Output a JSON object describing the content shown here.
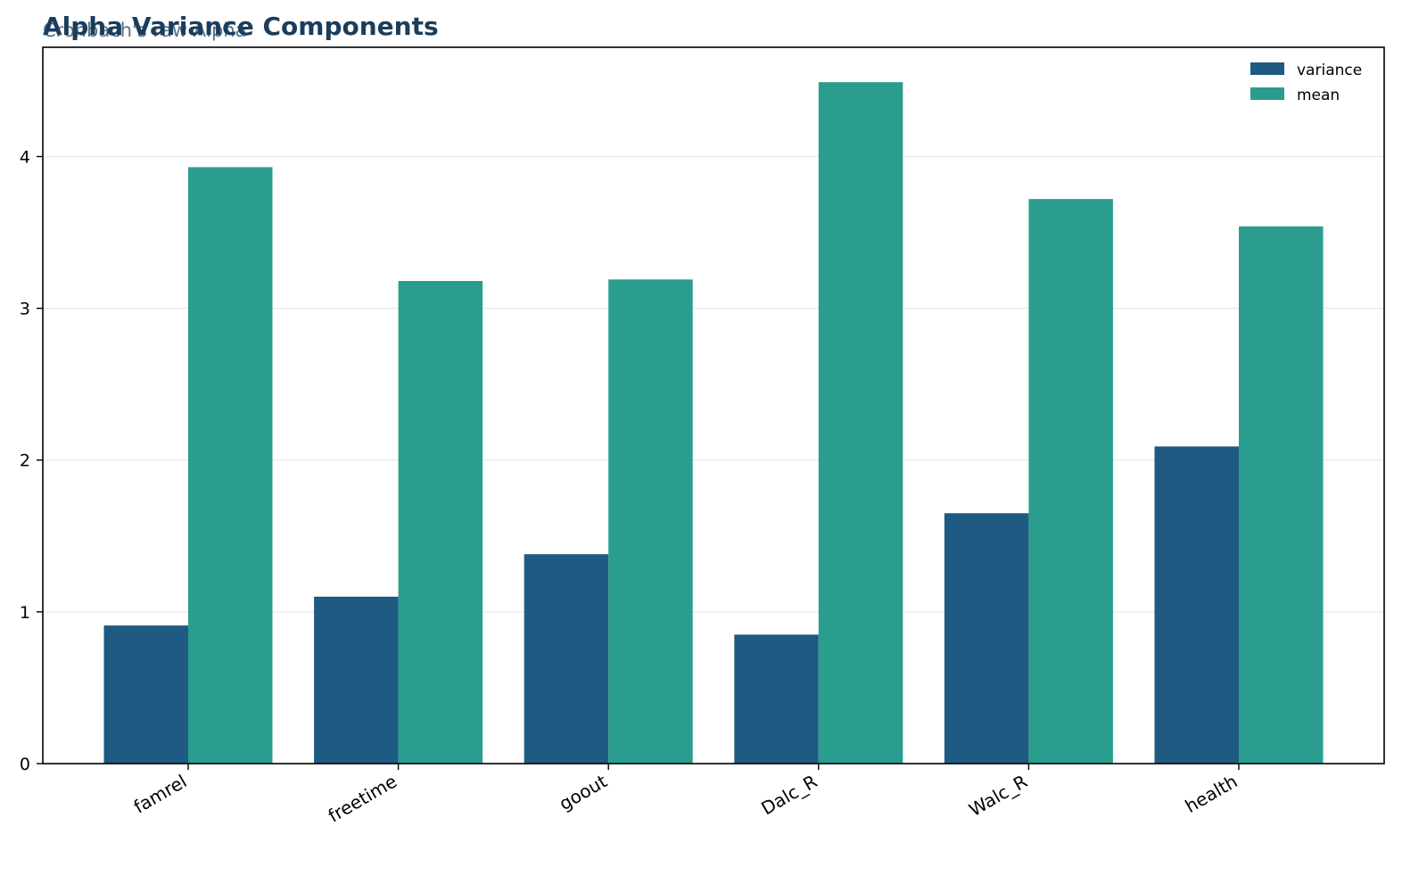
{
  "chart_data": {
    "type": "bar",
    "title": "Alpha Variance Components",
    "subtitle": "Cronbach's raw Alpha",
    "xlabel": "",
    "ylabel": "",
    "categories": [
      "famrel",
      "freetime",
      "goout",
      "Dalc_R",
      "Walc_R",
      "health"
    ],
    "series": [
      {
        "name": "variance",
        "color": "#1f5a82",
        "values": [
          0.91,
          1.1,
          1.38,
          0.85,
          1.65,
          2.09
        ]
      },
      {
        "name": "mean",
        "color": "#2a9d8f",
        "values": [
          3.93,
          3.18,
          3.19,
          4.49,
          3.72,
          3.54
        ]
      }
    ],
    "ylim": [
      0,
      4.72
    ],
    "yticks": [
      0,
      1,
      2,
      3,
      4
    ],
    "grid": true,
    "legend_position": "top-right",
    "xtick_rotation": "30deg"
  }
}
